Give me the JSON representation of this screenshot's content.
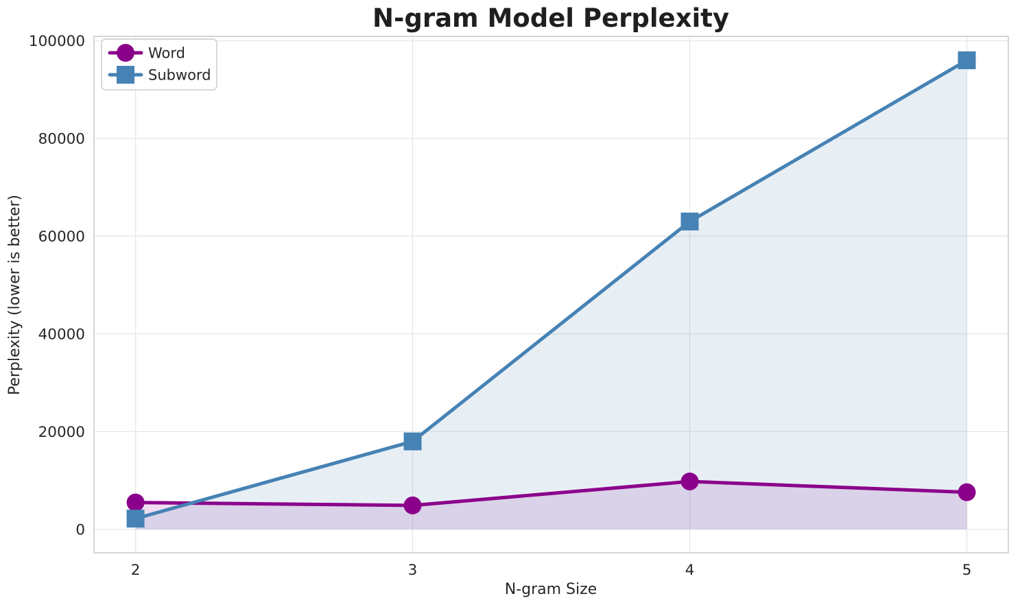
{
  "chart_data": {
    "type": "line",
    "title": "N-gram Model Perplexity",
    "xlabel": "N-gram Size",
    "ylabel": "Perplexity (lower is better)",
    "x": [
      2,
      3,
      4,
      5
    ],
    "series": [
      {
        "name": "Word",
        "marker": "circle",
        "color": "#8B008B",
        "values": [
          5500,
          4900,
          9800,
          7600
        ]
      },
      {
        "name": "Subword",
        "marker": "square",
        "color": "#4682B4",
        "values": [
          2200,
          18000,
          63000,
          96000
        ]
      }
    ],
    "x_ticks": [
      2,
      3,
      4,
      5
    ],
    "y_ticks": [
      0,
      20000,
      40000,
      60000,
      80000,
      100000
    ],
    "xlim": [
      1.85,
      5.15
    ],
    "ylim": [
      -4800,
      100900
    ],
    "area_fill": true,
    "fill_opacity": 0.13,
    "area_baseline": 0,
    "grid": true,
    "legend_position": "upper-left",
    "legend_labels": [
      "Word",
      "Subword"
    ]
  },
  "colors": {
    "text": "#262626",
    "title_text": "#1f1f1f",
    "gridline": "#e7e7e7",
    "spine": "#c9c9c9",
    "legend_border": "#cccccc",
    "background": "#ffffff"
  }
}
